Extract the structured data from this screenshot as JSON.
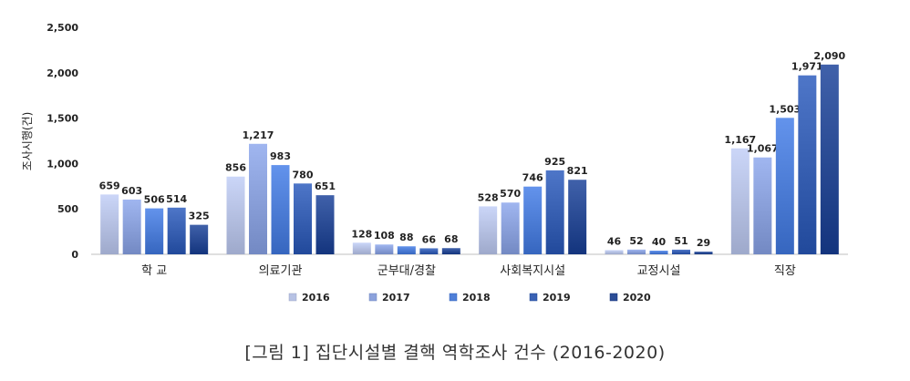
{
  "caption": "[그림 1] 집단시설별 결핵 역학조사 건수 (2016-2020)",
  "chart_data": {
    "type": "bar",
    "ylabel": "조사시행(건)",
    "ylim": [
      0,
      2500
    ],
    "yticks": [
      "0",
      "500",
      "1,000",
      "1,500",
      "2,000",
      "2,500"
    ],
    "grid": false,
    "legend_position": "bottom",
    "categories": [
      "학 교",
      "의료기관",
      "군부대/경찰",
      "사회복지시설",
      "교정시설",
      "직장"
    ],
    "series": [
      {
        "name": "2016",
        "color": "#b7c2e4",
        "values": [
          659,
          856,
          128,
          528,
          46,
          1167
        ],
        "labels": [
          "659",
          "856",
          "128",
          "528",
          "46",
          "1,167"
        ]
      },
      {
        "name": "2017",
        "color": "#8ca2dc",
        "values": [
          603,
          1217,
          108,
          570,
          52,
          1067
        ],
        "labels": [
          "603",
          "1,217",
          "108",
          "570",
          "52",
          "1,067"
        ]
      },
      {
        "name": "2018",
        "color": "#4f7fd8",
        "values": [
          506,
          983,
          88,
          746,
          40,
          1503
        ],
        "labels": [
          "506",
          "983",
          "88",
          "746",
          "40",
          "1,503"
        ]
      },
      {
        "name": "2019",
        "color": "#3a62b4",
        "values": [
          514,
          780,
          66,
          925,
          51,
          1971
        ],
        "labels": [
          "514",
          "780",
          "66",
          "925",
          "51",
          "1,971"
        ]
      },
      {
        "name": "2020",
        "color": "#2c4d96",
        "values": [
          325,
          651,
          68,
          821,
          29,
          2090
        ],
        "labels": [
          "325",
          "651",
          "68",
          "821",
          "29",
          "2,090"
        ]
      }
    ]
  }
}
